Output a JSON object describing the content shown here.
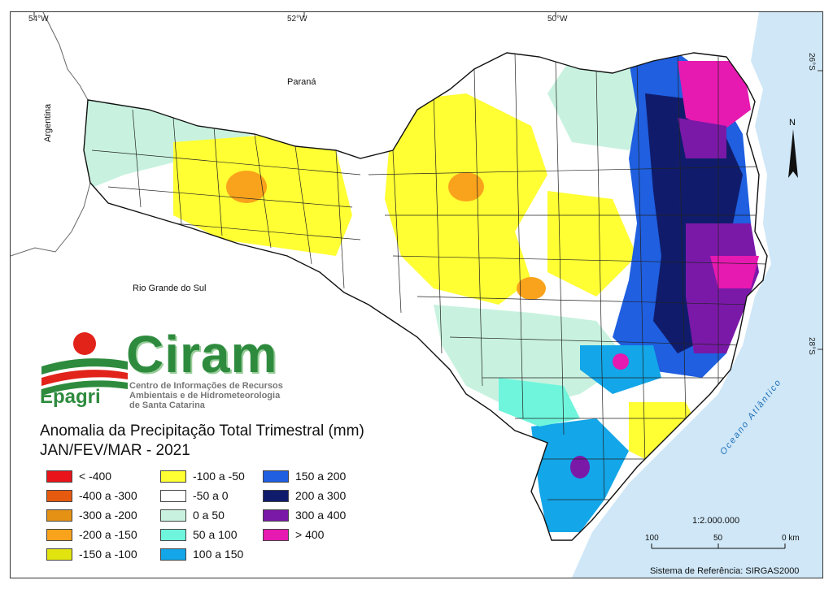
{
  "title": "Anomalia da Precipitação Total Trimestral (mm)",
  "subtitle": "JAN/FEV/MAR - 2021",
  "longitude_ticks": [
    "54°W",
    "52°W",
    "50°W"
  ],
  "latitude_ticks": [
    "26°S",
    "28°S"
  ],
  "place_labels": {
    "parana": "Paraná",
    "argentina": "Argentina",
    "rio_grande_do_sul": "Rio Grande do Sul",
    "ocean": "Oceano Atlântico"
  },
  "logo": {
    "brand": "Ciram",
    "agency": "Epagri",
    "description": [
      "Centro de Informações de Recursos",
      "Ambientais e de Hidrometeorologia",
      "de Santa Catarina"
    ],
    "colors": {
      "green": "#2e8b3e",
      "red": "#e2231a",
      "orange": "#f7941d"
    }
  },
  "north_label": "N",
  "legend": [
    {
      "label": "< -400",
      "color": "#e8141a"
    },
    {
      "label": "-400 a -300",
      "color": "#e65a10"
    },
    {
      "label": "-300 a -200",
      "color": "#e59214"
    },
    {
      "label": "-200 a -150",
      "color": "#f9a21c"
    },
    {
      "label": "-150 a -100",
      "color": "#e2e410"
    },
    {
      "label": "-100 a -50",
      "color": "#ffff33"
    },
    {
      "label": "-50 a 0",
      "color": "#ffffff"
    },
    {
      "label": "0 a 50",
      "color": "#c8f2df"
    },
    {
      "label": "50 a 100",
      "color": "#6ff5dc"
    },
    {
      "label": "100 a 150",
      "color": "#13a6e8"
    },
    {
      "label": "150 a 200",
      "color": "#1f5fe0"
    },
    {
      "label": "200 a 300",
      "color": "#101c6b"
    },
    {
      "label": "300 a 400",
      "color": "#7a19a8"
    },
    {
      "label": "> 400",
      "color": "#e619b0"
    }
  ],
  "scale": {
    "ratio": "1:2.000.000",
    "ticks": [
      "100",
      "50",
      "0 km"
    ]
  },
  "reference_system": "Sistema de Referência: SIRGAS2000",
  "colors": {
    "ocean": "#cfe7f7",
    "frame": "#333333"
  }
}
